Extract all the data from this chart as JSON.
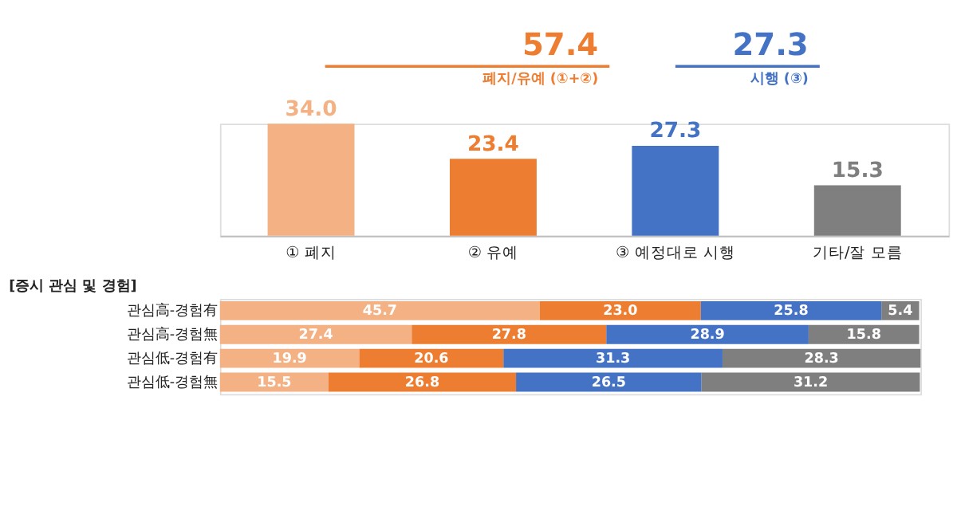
{
  "chart_data": [
    {
      "type": "bar",
      "categories": [
        "① 폐지",
        "② 유예",
        "③ 예정대로 시행",
        "기타/잘 모름"
      ],
      "values": [
        34.0,
        23.4,
        27.3,
        15.3
      ],
      "value_labels": [
        "34.0",
        "23.4",
        "27.3",
        "15.3"
      ],
      "colors": [
        "#f4b183",
        "#ed7d31",
        "#4472c4",
        "#7f7f7f"
      ],
      "grid": false,
      "annotations": [
        "57.4",
        "폐지/유예 (①+②)",
        "27.3",
        "시행 (③)"
      ]
    },
    {
      "type": "bar",
      "orientation": "horizontal",
      "stacked": true,
      "title": "[증시 관심 및 경험]",
      "categories": [
        "관심高-경험有",
        "관심高-경험無",
        "관심低-경험有",
        "관심低-경험無"
      ],
      "grid": false,
      "tick_labels": "y",
      "series": [
        {
          "color": "#f4b183",
          "values": [
            45.7,
            27.4,
            19.9,
            15.5
          ],
          "value_labels": [
            "45.7",
            "27.4",
            "19.9",
            "15.5"
          ]
        },
        {
          "color": "#ed7d31",
          "values": [
            23.0,
            27.8,
            20.6,
            26.8
          ],
          "value_labels": [
            "23.0",
            "27.8",
            "20.6",
            "26.8"
          ]
        },
        {
          "color": "#4472c4",
          "values": [
            25.8,
            28.9,
            31.3,
            26.5
          ],
          "value_labels": [
            "25.8",
            "28.9",
            "31.3",
            "26.5"
          ]
        },
        {
          "color": "#7f7f7f",
          "values": [
            5.4,
            15.8,
            28.3,
            31.2
          ],
          "value_labels": [
            "5.4",
            "15.8",
            "28.3",
            "31.2"
          ]
        }
      ]
    }
  ]
}
